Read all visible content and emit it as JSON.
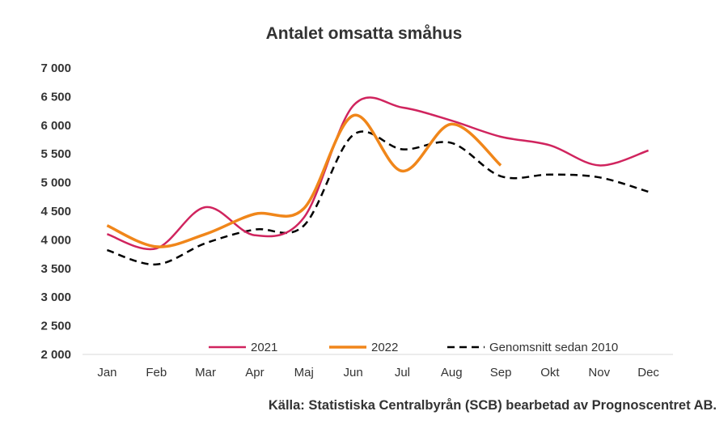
{
  "chart_data": {
    "type": "line",
    "title": "Antalet omsatta småhus",
    "xlabel": "",
    "ylabel": "",
    "categories": [
      "Jan",
      "Feb",
      "Mar",
      "Apr",
      "Maj",
      "Jun",
      "Jul",
      "Aug",
      "Sep",
      "Okt",
      "Nov",
      "Dec"
    ],
    "ylim": [
      2000,
      7000
    ],
    "yticks": [
      2000,
      2500,
      3000,
      3500,
      4000,
      4500,
      5000,
      5500,
      6000,
      6500,
      7000
    ],
    "ytick_labels": [
      "2 000",
      "2 500",
      "3 000",
      "3 500",
      "4 000",
      "4 500",
      "5 000",
      "5 500",
      "6 000",
      "6 500",
      "7 000"
    ],
    "grid": false,
    "legend_position": "bottom",
    "series": [
      {
        "name": "2021",
        "color": "#d0245e",
        "dash": "solid",
        "values": [
          4100,
          3850,
          4570,
          4080,
          4390,
          6340,
          6310,
          6080,
          5800,
          5650,
          5300,
          5560
        ]
      },
      {
        "name": "2022",
        "color": "#f0861a",
        "dash": "solid",
        "values": [
          4250,
          3880,
          4100,
          4450,
          4550,
          6170,
          5200,
          6020,
          5300,
          null,
          null,
          null
        ]
      },
      {
        "name": "Genomsnitt sedan 2010",
        "color": "#000000",
        "dash": "dashed",
        "values": [
          3820,
          3570,
          3940,
          4180,
          4250,
          5830,
          5580,
          5690,
          5110,
          5140,
          5090,
          4840
        ]
      }
    ]
  },
  "source": "Källa: Statistiska Centralbyrån (SCB) bearbetad av Prognoscentret AB."
}
